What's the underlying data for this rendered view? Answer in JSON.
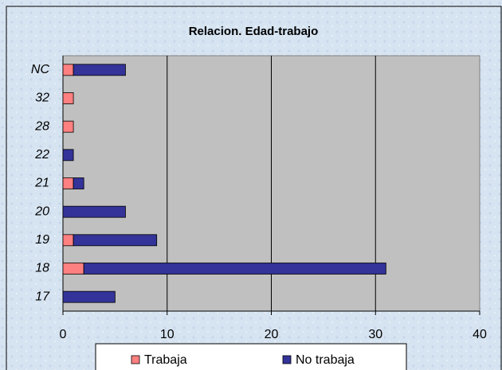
{
  "chart_data": {
    "type": "bar",
    "orientation": "horizontal",
    "stacked": true,
    "title": "Relacion. Edad-trabajo",
    "categories": [
      "17",
      "18",
      "19",
      "20",
      "21",
      "22",
      "28",
      "32",
      "NC"
    ],
    "series": [
      {
        "name": "Trabaja",
        "color": "#ff8080",
        "values": [
          0,
          2,
          1,
          0,
          1,
          0,
          1,
          1,
          1
        ]
      },
      {
        "name": "No trabaja",
        "color": "#333399",
        "values": [
          5,
          29,
          8,
          6,
          1,
          1,
          0,
          0,
          5
        ]
      }
    ],
    "xlim": [
      0,
      40
    ],
    "xticks": [
      0,
      10,
      20,
      30,
      40
    ],
    "grid": true,
    "legend": "bottom"
  }
}
